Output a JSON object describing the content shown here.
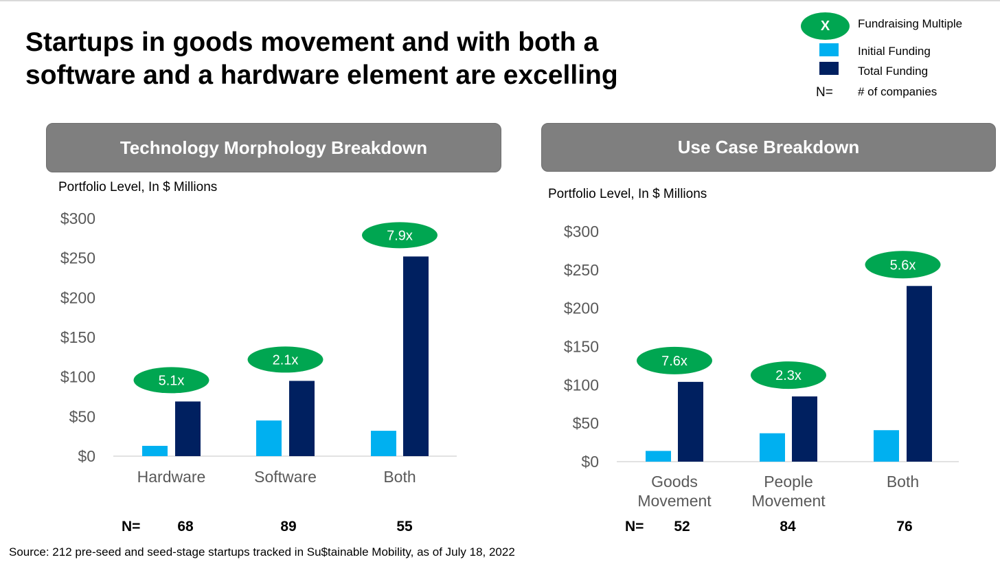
{
  "title": "Startups in goods movement and with both a software and a hardware element are excelling",
  "legend": {
    "multiple_symbol": "X",
    "multiple_label": "Fundraising Multiple",
    "initial_label": "Initial Funding",
    "total_label": "Total Funding",
    "n_symbol": "N=",
    "n_label": "# of companies"
  },
  "colors": {
    "initial": "#00b0f0",
    "total": "#002060",
    "multiple_oval": "#00a651",
    "header_box": "#7f7f7f"
  },
  "n_row_label": "N=",
  "source": "Source: 212 pre-seed and seed-stage startups tracked in Su$tainable Mobility, as of July 18, 2022",
  "chart_data": [
    {
      "type": "bar",
      "title": "Technology Morphology Breakdown",
      "subtitle": "Portfolio Level, In $ Millions",
      "categories": [
        "Hardware",
        "Software",
        "Both"
      ],
      "series": [
        {
          "name": "Initial Funding",
          "values": [
            13,
            45,
            32
          ]
        },
        {
          "name": "Total Funding",
          "values": [
            69,
            95,
            252
          ]
        }
      ],
      "multiples": [
        "5.1x",
        "2.1x",
        "7.9x"
      ],
      "n_values": [
        "68",
        "89",
        "55"
      ],
      "yticks": [
        "$0",
        "$50",
        "$100",
        "$150",
        "$200",
        "$250",
        "$300"
      ],
      "ylim": [
        0,
        300
      ],
      "grid": false,
      "legend": "top-right"
    },
    {
      "type": "bar",
      "title": "Use Case Breakdown",
      "subtitle": "Portfolio Level, In $ Millions",
      "categories": [
        [
          "Goods",
          "Movement"
        ],
        [
          "People",
          "Movement"
        ],
        [
          "Both"
        ]
      ],
      "series": [
        {
          "name": "Initial Funding",
          "values": [
            14,
            37,
            41
          ]
        },
        {
          "name": "Total Funding",
          "values": [
            104,
            85,
            229
          ]
        }
      ],
      "multiples": [
        "7.6x",
        "2.3x",
        "5.6x"
      ],
      "n_values": [
        "52",
        "84",
        "76"
      ],
      "yticks": [
        "$0",
        "$50",
        "$100",
        "$150",
        "$200",
        "$250",
        "$300"
      ],
      "ylim": [
        0,
        300
      ],
      "grid": false,
      "legend": "top-right"
    }
  ]
}
